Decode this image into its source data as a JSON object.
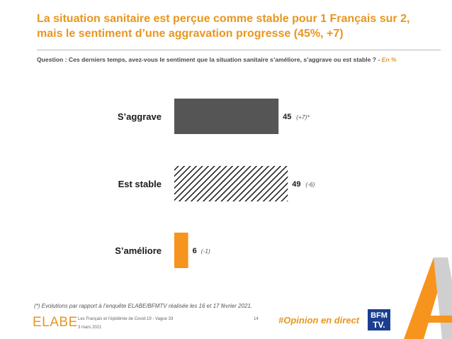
{
  "header": {
    "title": "La situation sanitaire est perçue comme stable pour 1 Français sur 2, mais le sentiment d’une aggravation progresse (45%, +7)",
    "question": "Question : Ces derniers temps, avez-vous le sentiment que la situation sanitaire s’améliore, s’aggrave ou est stable ? -",
    "question_unit": "En %"
  },
  "chart_data": {
    "type": "bar",
    "orientation": "horizontal",
    "categories": [
      "S’aggrave",
      "Est stable",
      "S’améliore"
    ],
    "values": [
      45,
      49,
      6
    ],
    "evolutions": [
      "(+7)*",
      "(-6)",
      "(-1)"
    ],
    "xlim": [
      0,
      100
    ],
    "colors": [
      "#555555",
      "hatched",
      "#F7941D"
    ],
    "grid": false,
    "legend": "none"
  },
  "footer": {
    "footnote": "(*) Evolutions par rapport à l’enquête ELABE/BFMTV réalisée les 16 et 17 février 2021.",
    "logo": "ELABE",
    "study": "Les Français et l’épidémie de Covid-19 - Vague 33",
    "date": "3 mars 2021",
    "page": "14",
    "hashtag": "#Opinion en direct",
    "bfm_top": "BFM",
    "bfm_bottom": "TV."
  }
}
